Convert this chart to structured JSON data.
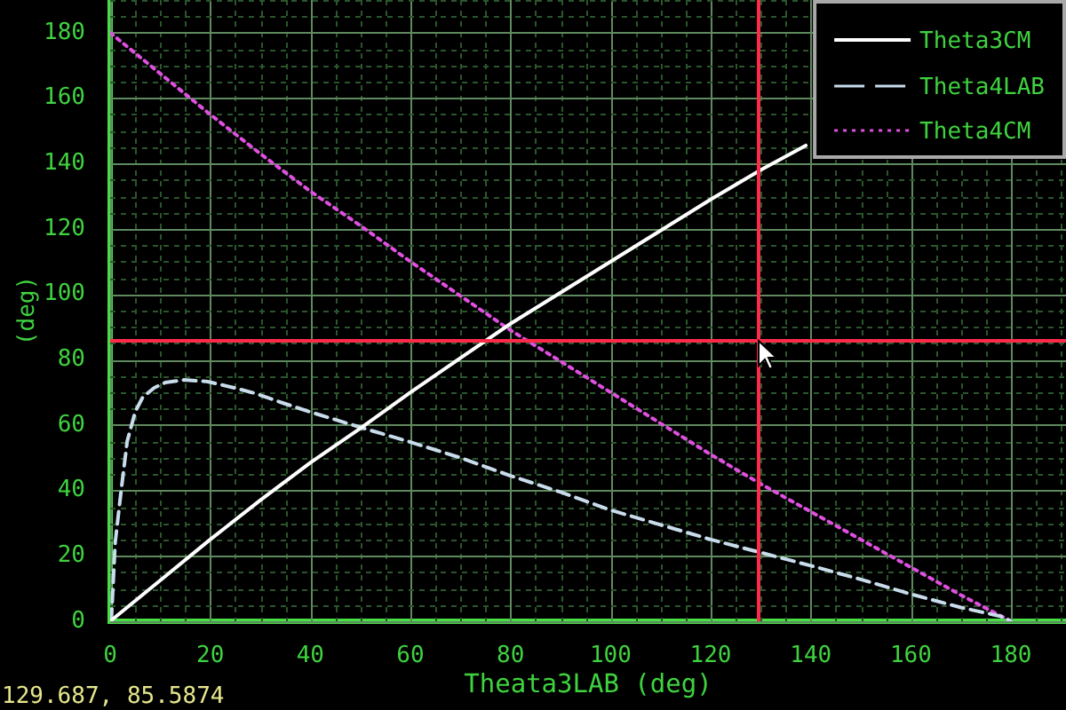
{
  "chart_data": {
    "type": "line",
    "xlabel": "Theata3LAB (deg)",
    "ylabel": "(deg)",
    "annotations": [
      "129.687, 85.5874"
    ],
    "xlim": [
      0,
      191
    ],
    "ylim": [
      0,
      190
    ],
    "xticks": [
      0,
      {
        "value": 5,
        "label": null
      },
      {
        "value": 10,
        "label": null
      },
      {
        "value": 15,
        "label": null
      },
      20,
      {
        "value": 25,
        "label": null
      },
      {
        "value": 30,
        "label": null
      },
      {
        "value": 35,
        "label": null
      },
      40,
      {
        "value": 45,
        "label": null
      },
      {
        "value": 50,
        "label": null
      },
      {
        "value": 55,
        "label": null
      },
      60,
      {
        "value": 65,
        "label": null
      },
      {
        "value": 70,
        "label": null
      },
      {
        "value": 75,
        "label": null
      },
      80,
      {
        "value": 85,
        "label": null
      },
      {
        "value": 90,
        "label": null
      },
      {
        "value": 95,
        "label": null
      },
      100,
      {
        "value": 105,
        "label": null
      },
      {
        "value": 110,
        "label": null
      },
      {
        "value": 115,
        "label": null
      },
      120,
      {
        "value": 125,
        "label": null
      },
      {
        "value": 130,
        "label": null
      },
      {
        "value": 135,
        "label": null
      },
      140,
      {
        "value": 145,
        "label": null
      },
      {
        "value": 150,
        "label": null
      },
      {
        "value": 155,
        "label": null
      },
      160,
      {
        "value": 165,
        "label": null
      },
      {
        "value": 170,
        "label": null
      },
      {
        "value": 175,
        "label": null
      },
      180,
      {
        "value": 185,
        "label": null
      },
      {
        "value": 190,
        "label": null
      }
    ],
    "yticks": [
      0,
      {
        "value": 5,
        "label": null
      },
      {
        "value": 10,
        "label": null
      },
      {
        "value": 15,
        "label": null
      },
      20,
      {
        "value": 25,
        "label": null
      },
      {
        "value": 30,
        "label": null
      },
      {
        "value": 35,
        "label": null
      },
      40,
      {
        "value": 45,
        "label": null
      },
      {
        "value": 50,
        "label": null
      },
      {
        "value": 55,
        "label": null
      },
      60,
      {
        "value": 65,
        "label": null
      },
      {
        "value": 70,
        "label": null
      },
      {
        "value": 75,
        "label": null
      },
      80,
      {
        "value": 85,
        "label": null
      },
      {
        "value": 90,
        "label": null
      },
      {
        "value": 95,
        "label": null
      },
      100,
      {
        "value": 105,
        "label": null
      },
      {
        "value": 110,
        "label": null
      },
      {
        "value": 115,
        "label": null
      },
      120,
      {
        "value": 125,
        "label": null
      },
      {
        "value": 130,
        "label": null
      },
      {
        "value": 135,
        "label": null
      },
      140,
      {
        "value": 145,
        "label": null
      },
      {
        "value": 150,
        "label": null
      },
      {
        "value": 155,
        "label": null
      },
      160,
      {
        "value": 165,
        "label": null
      },
      {
        "value": 170,
        "label": null
      },
      {
        "value": 175,
        "label": null
      },
      180,
      {
        "value": 185,
        "label": null
      },
      {
        "value": 190,
        "label": null
      }
    ],
    "grid": true,
    "legend": "top right",
    "ref_lines": [
      {
        "axis": "x",
        "value": 129.687,
        "color": "#ff2a4a"
      },
      {
        "axis": "y",
        "value": 85.5874,
        "color": "#ff2a4a"
      }
    ],
    "series": [
      {
        "name": "Theta3CM",
        "color": "#ffffff",
        "line_style": "solid",
        "x": [
          0,
          10,
          20,
          30,
          40,
          50,
          60,
          70,
          80,
          90,
          100,
          110,
          120,
          130,
          139
        ],
        "values": [
          0,
          12.5,
          25,
          37,
          48.5,
          59,
          70,
          80.5,
          91,
          100.5,
          110,
          119.5,
          129,
          138,
          145.5
        ]
      },
      {
        "name": "Theta4LAB",
        "color": "#c8dcec",
        "line_style": "dashed",
        "x": [
          0,
          0.3,
          1,
          2.2,
          3.4,
          5,
          6.5,
          8.8,
          11,
          14.7,
          19.5,
          25,
          29,
          35,
          40,
          50,
          60,
          70,
          80,
          90,
          100,
          110,
          120,
          130,
          140,
          150,
          160,
          170,
          178,
          180
        ],
        "values": [
          0,
          2,
          24,
          40,
          55,
          64,
          68.5,
          71.4,
          73,
          73.8,
          73.3,
          71.3,
          69.7,
          66.5,
          64,
          59.3,
          54.8,
          50,
          44.5,
          39.5,
          34,
          29.5,
          25,
          21,
          17,
          12.8,
          8.3,
          4.2,
          1.5,
          0
        ]
      },
      {
        "name": "Theta4CM",
        "color": "#e050e0",
        "line_style": "dotted",
        "x": [
          0,
          10,
          20,
          30,
          40,
          50,
          60,
          70,
          80,
          90,
          100,
          110,
          120,
          130,
          140,
          150,
          160,
          170,
          180
        ],
        "values": [
          180,
          167.5,
          155,
          143,
          131.5,
          121,
          110,
          99.5,
          89,
          79.5,
          70,
          60.5,
          51,
          42,
          33.5,
          25,
          16.5,
          8,
          0
        ]
      }
    ]
  }
}
